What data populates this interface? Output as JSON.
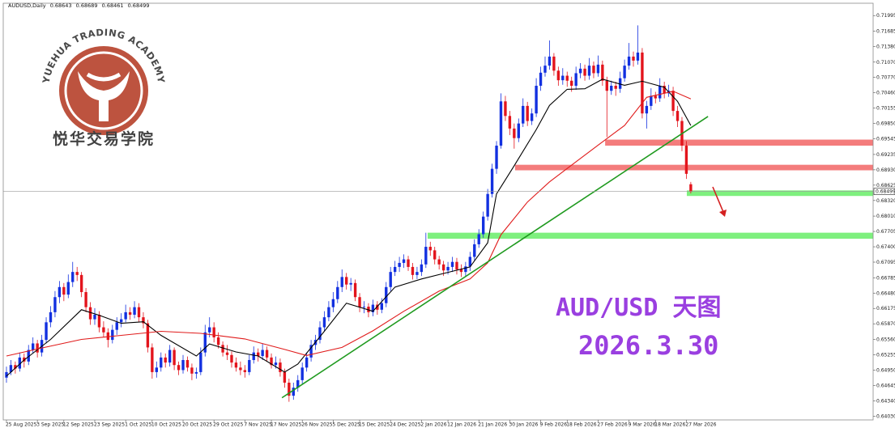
{
  "logo": {
    "english": "YUEHUA TRADING ACADEMY",
    "chinese": "悦华交易学院"
  },
  "chart_data": {
    "type": "candlestick",
    "title": "AUDUSD,Daily",
    "annotations": [
      "AUD/USD 天图",
      "2026.3.30"
    ],
    "up_color": "#1230e0",
    "down_color": "#e3141c",
    "ylim": [
      0.6396,
      0.7224
    ],
    "yticks": [
      0.71995,
      0.71685,
      {
        "value": 0.7138,
        "label": "0.71380"
      },
      {
        "value": 0.7107,
        "label": "0.71070"
      },
      {
        "value": 0.7077,
        "label": "0.70770"
      },
      {
        "value": 0.7046,
        "label": "0.70460"
      },
      0.70155,
      {
        "value": 0.6985,
        "label": "0.69850"
      },
      0.69545,
      0.69235,
      {
        "value": 0.6893,
        "label": "0.68930"
      },
      0.68625,
      {
        "value": 0.6832,
        "label": "0.68320"
      },
      {
        "value": 0.6801,
        "label": "0.68010"
      },
      0.67705,
      {
        "value": 0.674,
        "label": "0.67400"
      },
      0.67095,
      0.66785,
      {
        "value": 0.6648,
        "label": "0.66480"
      },
      0.66175,
      {
        "value": 0.6587,
        "label": "0.65870"
      },
      {
        "value": 0.6556,
        "label": "0.65560"
      },
      0.65255,
      {
        "value": 0.6495,
        "label": "0.64950"
      },
      0.64645,
      {
        "value": 0.6434,
        "label": "0.64340"
      },
      {
        "value": 0.6403,
        "label": "0.64030"
      }
    ],
    "xlim": [
      -0.73,
      196.3
    ],
    "xticks": [
      {
        "value": 0,
        "label": "25 Aug 2025"
      },
      {
        "value": 7,
        "label": "3 Sep 2025"
      },
      {
        "value": 13,
        "label": "12 Sep 2025"
      },
      {
        "value": 20,
        "label": "23 Sep 2025"
      },
      {
        "value": 27,
        "label": "1 Oct 2025"
      },
      {
        "value": 33,
        "label": "10 Oct 2025"
      },
      {
        "value": 40,
        "label": "20 Oct 2025"
      },
      {
        "value": 47,
        "label": "29 Oct 2025"
      },
      {
        "value": 54,
        "label": "7 Nov 2025"
      },
      {
        "value": 60,
        "label": "17 Nov 2025"
      },
      {
        "value": 67,
        "label": "26 Nov 2025"
      },
      {
        "value": 74,
        "label": "5 Dec 2025"
      },
      {
        "value": 80,
        "label": "15 Dec 2025"
      },
      {
        "value": 87,
        "label": "24 Dec 2025"
      },
      {
        "value": 94,
        "label": "2 Jan 2026"
      },
      {
        "value": 100,
        "label": "12 Jan 2026"
      },
      {
        "value": 107,
        "label": "21 Jan 2026"
      },
      {
        "value": 114,
        "label": "30 Jan 2026"
      },
      {
        "value": 121,
        "label": "9 Feb 2026"
      },
      {
        "value": 127,
        "label": "18 Feb 2026"
      },
      {
        "value": 134,
        "label": "27 Feb 2026"
      },
      {
        "value": 141,
        "label": "9 Mar 2026"
      },
      {
        "value": 147,
        "label": "18 Mar 2026"
      },
      {
        "value": 154,
        "label": "27 Mar 2026"
      }
    ],
    "ohlc": [
      [
        0.648,
        0.6502,
        0.647,
        0.6491
      ],
      [
        0.6491,
        0.6515,
        0.6485,
        0.6505
      ],
      [
        0.6505,
        0.6512,
        0.6488,
        0.6498
      ],
      [
        0.6498,
        0.653,
        0.6492,
        0.652
      ],
      [
        0.652,
        0.6528,
        0.65,
        0.6512
      ],
      [
        0.6512,
        0.6545,
        0.6505,
        0.6535
      ],
      [
        0.6535,
        0.656,
        0.6528,
        0.6548
      ],
      [
        0.6548,
        0.6555,
        0.652,
        0.653
      ],
      [
        0.653,
        0.6565,
        0.6522,
        0.6555
      ],
      [
        0.6555,
        0.66,
        0.6548,
        0.659
      ],
      [
        0.659,
        0.6622,
        0.658,
        0.661
      ],
      [
        0.661,
        0.6652,
        0.66,
        0.664
      ],
      [
        0.664,
        0.6672,
        0.6628,
        0.666
      ],
      [
        0.666,
        0.6668,
        0.6632,
        0.6645
      ],
      [
        0.6645,
        0.6685,
        0.6638,
        0.667
      ],
      [
        0.667,
        0.671,
        0.666,
        0.669
      ],
      [
        0.669,
        0.67,
        0.6672,
        0.6684
      ],
      [
        0.6684,
        0.669,
        0.664,
        0.665
      ],
      [
        0.665,
        0.6658,
        0.661,
        0.662
      ],
      [
        0.662,
        0.663,
        0.6585,
        0.6596
      ],
      [
        0.6596,
        0.6618,
        0.6585,
        0.6605
      ],
      [
        0.6605,
        0.6612,
        0.657,
        0.658
      ],
      [
        0.658,
        0.6592,
        0.656,
        0.657
      ],
      [
        0.657,
        0.6578,
        0.654,
        0.6555
      ],
      [
        0.6555,
        0.6585,
        0.6548,
        0.6575
      ],
      [
        0.6575,
        0.66,
        0.6565,
        0.659
      ],
      [
        0.659,
        0.6608,
        0.658,
        0.6596
      ],
      [
        0.6596,
        0.6625,
        0.659,
        0.661
      ],
      [
        0.661,
        0.662,
        0.6595,
        0.6605
      ],
      [
        0.6605,
        0.6632,
        0.6598,
        0.662
      ],
      [
        0.662,
        0.6628,
        0.659,
        0.66
      ],
      [
        0.66,
        0.661,
        0.6578,
        0.6588
      ],
      [
        0.6588,
        0.6595,
        0.653,
        0.654
      ],
      [
        0.654,
        0.6548,
        0.6478,
        0.6491
      ],
      [
        0.6491,
        0.6512,
        0.648,
        0.65
      ],
      [
        0.65,
        0.653,
        0.6492,
        0.652
      ],
      [
        0.652,
        0.6528,
        0.65,
        0.651
      ],
      [
        0.651,
        0.6545,
        0.6502,
        0.6535
      ],
      [
        0.6535,
        0.654,
        0.6495,
        0.6505
      ],
      [
        0.6505,
        0.6512,
        0.6485,
        0.6495
      ],
      [
        0.6495,
        0.6525,
        0.6488,
        0.6515
      ],
      [
        0.6515,
        0.6522,
        0.6492,
        0.65
      ],
      [
        0.65,
        0.6508,
        0.6475,
        0.6488
      ],
      [
        0.6488,
        0.65,
        0.6478,
        0.6491
      ],
      [
        0.6491,
        0.654,
        0.6485,
        0.653
      ],
      [
        0.653,
        0.6585,
        0.6522,
        0.657
      ],
      [
        0.657,
        0.66,
        0.656,
        0.658
      ],
      [
        0.658,
        0.659,
        0.655,
        0.656
      ],
      [
        0.656,
        0.657,
        0.6538,
        0.6545
      ],
      [
        0.6545,
        0.6552,
        0.6522,
        0.653
      ],
      [
        0.653,
        0.6545,
        0.6515,
        0.6525
      ],
      [
        0.6525,
        0.6532,
        0.65,
        0.651
      ],
      [
        0.651,
        0.652,
        0.6492,
        0.65
      ],
      [
        0.65,
        0.6512,
        0.6485,
        0.6495
      ],
      [
        0.6495,
        0.6505,
        0.648,
        0.6491
      ],
      [
        0.6491,
        0.6525,
        0.6485,
        0.6515
      ],
      [
        0.6515,
        0.6542,
        0.6508,
        0.653
      ],
      [
        0.653,
        0.6538,
        0.6512,
        0.6523
      ],
      [
        0.6523,
        0.6548,
        0.6515,
        0.6535
      ],
      [
        0.6535,
        0.6542,
        0.6512,
        0.652
      ],
      [
        0.652,
        0.6528,
        0.6498,
        0.6505
      ],
      [
        0.6505,
        0.6522,
        0.6498,
        0.651
      ],
      [
        0.651,
        0.6518,
        0.6482,
        0.6491
      ],
      [
        0.6491,
        0.6498,
        0.646,
        0.647
      ],
      [
        0.647,
        0.6478,
        0.6432,
        0.6444
      ],
      [
        0.6444,
        0.647,
        0.6436,
        0.646
      ],
      [
        0.646,
        0.6485,
        0.6452,
        0.6475
      ],
      [
        0.6475,
        0.651,
        0.6468,
        0.65
      ],
      [
        0.65,
        0.653,
        0.6492,
        0.652
      ],
      [
        0.652,
        0.6555,
        0.6512,
        0.6545
      ],
      [
        0.6545,
        0.6565,
        0.6535,
        0.6555
      ],
      [
        0.6555,
        0.6592,
        0.6548,
        0.658
      ],
      [
        0.658,
        0.6612,
        0.6572,
        0.66
      ],
      [
        0.66,
        0.6632,
        0.6592,
        0.662
      ],
      [
        0.662,
        0.665,
        0.661,
        0.6636
      ],
      [
        0.6636,
        0.6672,
        0.6628,
        0.666
      ],
      [
        0.666,
        0.6695,
        0.665,
        0.668
      ],
      [
        0.668,
        0.6688,
        0.6655,
        0.6665
      ],
      [
        0.6665,
        0.6678,
        0.6652,
        0.6668
      ],
      [
        0.6668,
        0.6675,
        0.6632,
        0.664
      ],
      [
        0.664,
        0.6648,
        0.661,
        0.662
      ],
      [
        0.662,
        0.6632,
        0.6608,
        0.6621
      ],
      [
        0.6621,
        0.6628,
        0.66,
        0.661
      ],
      [
        0.661,
        0.6635,
        0.6602,
        0.6625
      ],
      [
        0.6625,
        0.6632,
        0.6605,
        0.6615
      ],
      [
        0.6615,
        0.6638,
        0.6608,
        0.6628
      ],
      [
        0.6628,
        0.667,
        0.662,
        0.666
      ],
      [
        0.666,
        0.67,
        0.6652,
        0.669
      ],
      [
        0.669,
        0.6712,
        0.6682,
        0.67
      ],
      [
        0.67,
        0.672,
        0.669,
        0.6708
      ],
      [
        0.6708,
        0.6725,
        0.6698,
        0.6715
      ],
      [
        0.6715,
        0.6722,
        0.6692,
        0.67
      ],
      [
        0.67,
        0.6708,
        0.6675,
        0.6684
      ],
      [
        0.6684,
        0.67,
        0.6676,
        0.669
      ],
      [
        0.669,
        0.6715,
        0.6682,
        0.6705
      ],
      [
        0.6705,
        0.6768,
        0.6698,
        0.674
      ],
      [
        0.674,
        0.675,
        0.6722,
        0.6733
      ],
      [
        0.6733,
        0.674,
        0.6705,
        0.6715
      ],
      [
        0.6715,
        0.6722,
        0.6695,
        0.6705
      ],
      [
        0.6705,
        0.6712,
        0.6682,
        0.6693
      ],
      [
        0.6693,
        0.671,
        0.6685,
        0.67
      ],
      [
        0.67,
        0.672,
        0.669,
        0.671
      ],
      [
        0.671,
        0.6718,
        0.6685,
        0.6695
      ],
      [
        0.6695,
        0.6705,
        0.668,
        0.669
      ],
      [
        0.669,
        0.671,
        0.6682,
        0.6701
      ],
      [
        0.6701,
        0.673,
        0.6692,
        0.672
      ],
      [
        0.672,
        0.6755,
        0.6712,
        0.6745
      ],
      [
        0.6745,
        0.6775,
        0.6738,
        0.6765
      ],
      [
        0.6765,
        0.681,
        0.6758,
        0.68
      ],
      [
        0.68,
        0.6855,
        0.6792,
        0.6845
      ],
      [
        0.6845,
        0.6905,
        0.6838,
        0.6895
      ],
      [
        0.6895,
        0.695,
        0.6885,
        0.6941
      ],
      [
        0.6941,
        0.7045,
        0.6935,
        0.7029
      ],
      [
        0.7029,
        0.704,
        0.699,
        0.7
      ],
      [
        0.7,
        0.701,
        0.6962,
        0.6975
      ],
      [
        0.6975,
        0.6985,
        0.6935,
        0.6956
      ],
      [
        0.6956,
        0.6995,
        0.6948,
        0.6985
      ],
      [
        0.6985,
        0.7035,
        0.6978,
        0.702
      ],
      [
        0.702,
        0.7028,
        0.698,
        0.699
      ],
      [
        0.699,
        0.7015,
        0.6982,
        0.7005
      ],
      [
        0.7005,
        0.7075,
        0.6998,
        0.706
      ],
      [
        0.706,
        0.7098,
        0.705,
        0.7086
      ],
      [
        0.7086,
        0.7118,
        0.7078,
        0.71
      ],
      [
        0.71,
        0.715,
        0.7092,
        0.7118
      ],
      [
        0.7118,
        0.7125,
        0.708,
        0.709
      ],
      [
        0.709,
        0.7098,
        0.706,
        0.7071
      ],
      [
        0.7071,
        0.7095,
        0.7062,
        0.708
      ],
      [
        0.708,
        0.7088,
        0.7058,
        0.707
      ],
      [
        0.707,
        0.7078,
        0.7048,
        0.706
      ],
      [
        0.706,
        0.7098,
        0.7052,
        0.7085
      ],
      [
        0.7085,
        0.7105,
        0.7075,
        0.7094
      ],
      [
        0.7094,
        0.7102,
        0.707,
        0.708
      ],
      [
        0.708,
        0.7115,
        0.7072,
        0.71
      ],
      [
        0.71,
        0.7108,
        0.7075,
        0.7085
      ],
      [
        0.7085,
        0.712,
        0.7078,
        0.7102
      ],
      [
        0.7102,
        0.711,
        0.706,
        0.707
      ],
      [
        0.707,
        0.7078,
        0.6958,
        0.705
      ],
      [
        0.705,
        0.707,
        0.7042,
        0.706
      ],
      [
        0.706,
        0.7068,
        0.704,
        0.7054
      ],
      [
        0.7054,
        0.7088,
        0.7046,
        0.7075
      ],
      [
        0.7075,
        0.7112,
        0.7068,
        0.71
      ],
      [
        0.71,
        0.7145,
        0.7092,
        0.7118
      ],
      [
        0.7118,
        0.7128,
        0.7098,
        0.711
      ],
      [
        0.711,
        0.718,
        0.7102,
        0.7126
      ],
      [
        0.7126,
        0.7135,
        0.6995,
        0.7005
      ],
      [
        0.7005,
        0.703,
        0.6975,
        0.702
      ],
      [
        0.702,
        0.7055,
        0.7012,
        0.704
      ],
      [
        0.704,
        0.7048,
        0.7025,
        0.7035
      ],
      [
        0.7035,
        0.7075,
        0.7028,
        0.706
      ],
      [
        0.706,
        0.7068,
        0.7035,
        0.7045
      ],
      [
        0.7045,
        0.7062,
        0.7038,
        0.705
      ],
      [
        0.705,
        0.7058,
        0.7,
        0.701
      ],
      [
        0.701,
        0.702,
        0.6978,
        0.699
      ],
      [
        0.699,
        0.6998,
        0.693,
        0.6941
      ],
      [
        0.6941,
        0.695,
        0.6875,
        0.6885
      ],
      [
        0.68643,
        0.68689,
        0.68461,
        0.68499
      ]
    ],
    "overlays": [
      {
        "color": "#000000",
        "x": [
          0,
          4,
          10,
          17,
          21,
          26,
          31,
          35,
          43,
          46,
          52,
          57,
          63,
          66,
          72,
          77,
          83,
          88,
          94,
          99,
          105,
          109,
          111,
          115,
          120,
          123,
          127,
          131,
          135,
          140,
          144,
          149,
          152,
          155
        ],
        "values": [
          0.6483,
          0.6515,
          0.6556,
          0.6615,
          0.6604,
          0.6588,
          0.6591,
          0.6564,
          0.6523,
          0.6547,
          0.6531,
          0.6523,
          0.6491,
          0.6507,
          0.6572,
          0.6628,
          0.6612,
          0.666,
          0.6676,
          0.6687,
          0.67,
          0.6748,
          0.6845,
          0.6901,
          0.6973,
          0.7021,
          0.7053,
          0.7054,
          0.7073,
          0.7061,
          0.7069,
          0.7057,
          0.7029,
          0.6981
        ]
      },
      {
        "color": "#e01b1b",
        "x": [
          0,
          8,
          17,
          26,
          35,
          44,
          54,
          63,
          68,
          76,
          83,
          90,
          98,
          105,
          109,
          112,
          118,
          123,
          129,
          134,
          140,
          145,
          151,
          155
        ],
        "values": [
          0.6523,
          0.6539,
          0.6556,
          0.6564,
          0.6572,
          0.6568,
          0.6557,
          0.6536,
          0.6524,
          0.654,
          0.6573,
          0.6612,
          0.6652,
          0.6676,
          0.6708,
          0.6764,
          0.6829,
          0.6869,
          0.6909,
          0.6942,
          0.6981,
          0.7037,
          0.7049,
          0.7034
        ]
      }
    ],
    "trendline": {
      "color": "#1f9a1f",
      "x": [
        62.4,
        158.9
      ],
      "values": [
        0.644,
        0.6999
      ]
    },
    "zones": [
      {
        "color": "#f47c7c",
        "x_start": 135.6,
        "range": [
          0.6941,
          0.6953
        ]
      },
      {
        "color": "#f47c7c",
        "x_start": 115.2,
        "range": [
          0.6892,
          0.6903
        ]
      },
      {
        "color": "#7ef07e",
        "x_start": 154.1,
        "range": [
          0.6841,
          0.6852
        ]
      },
      {
        "color": "#7ef07e",
        "x_start": 95.4,
        "range": [
          0.6756,
          0.6768
        ]
      }
    ]
  }
}
